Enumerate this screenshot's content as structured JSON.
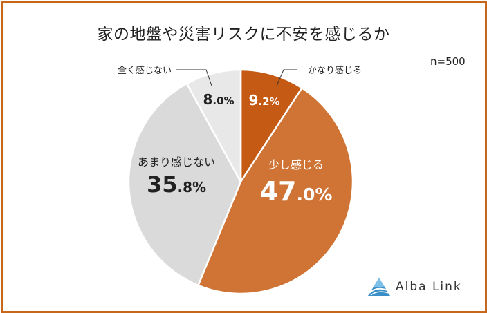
{
  "title": "家の地盤や災害リスクに不安を感じるか",
  "sample_size": "n=500",
  "brand": "Alba Link",
  "chart_data": {
    "type": "pie",
    "title": "家の地盤や災害リスクに不安を感じるか",
    "slices": [
      {
        "label": "かなり感じる",
        "value": 9.2,
        "int": "9",
        "dec": ".2%",
        "color": "#c45a14",
        "text_color": "#ffffff"
      },
      {
        "label": "少し感じる",
        "value": 47.0,
        "int": "47",
        "dec": ".0%",
        "color": "#cf7434",
        "text_color": "#ffffff"
      },
      {
        "label": "あまり感じない",
        "value": 35.8,
        "int": "35",
        "dec": ".8%",
        "color": "#dadada",
        "text_color": "#222222"
      },
      {
        "label": "全く感じない",
        "value": 8.0,
        "int": "8",
        "dec": ".0%",
        "color": "#e8e8e8",
        "text_color": "#222222"
      }
    ]
  }
}
